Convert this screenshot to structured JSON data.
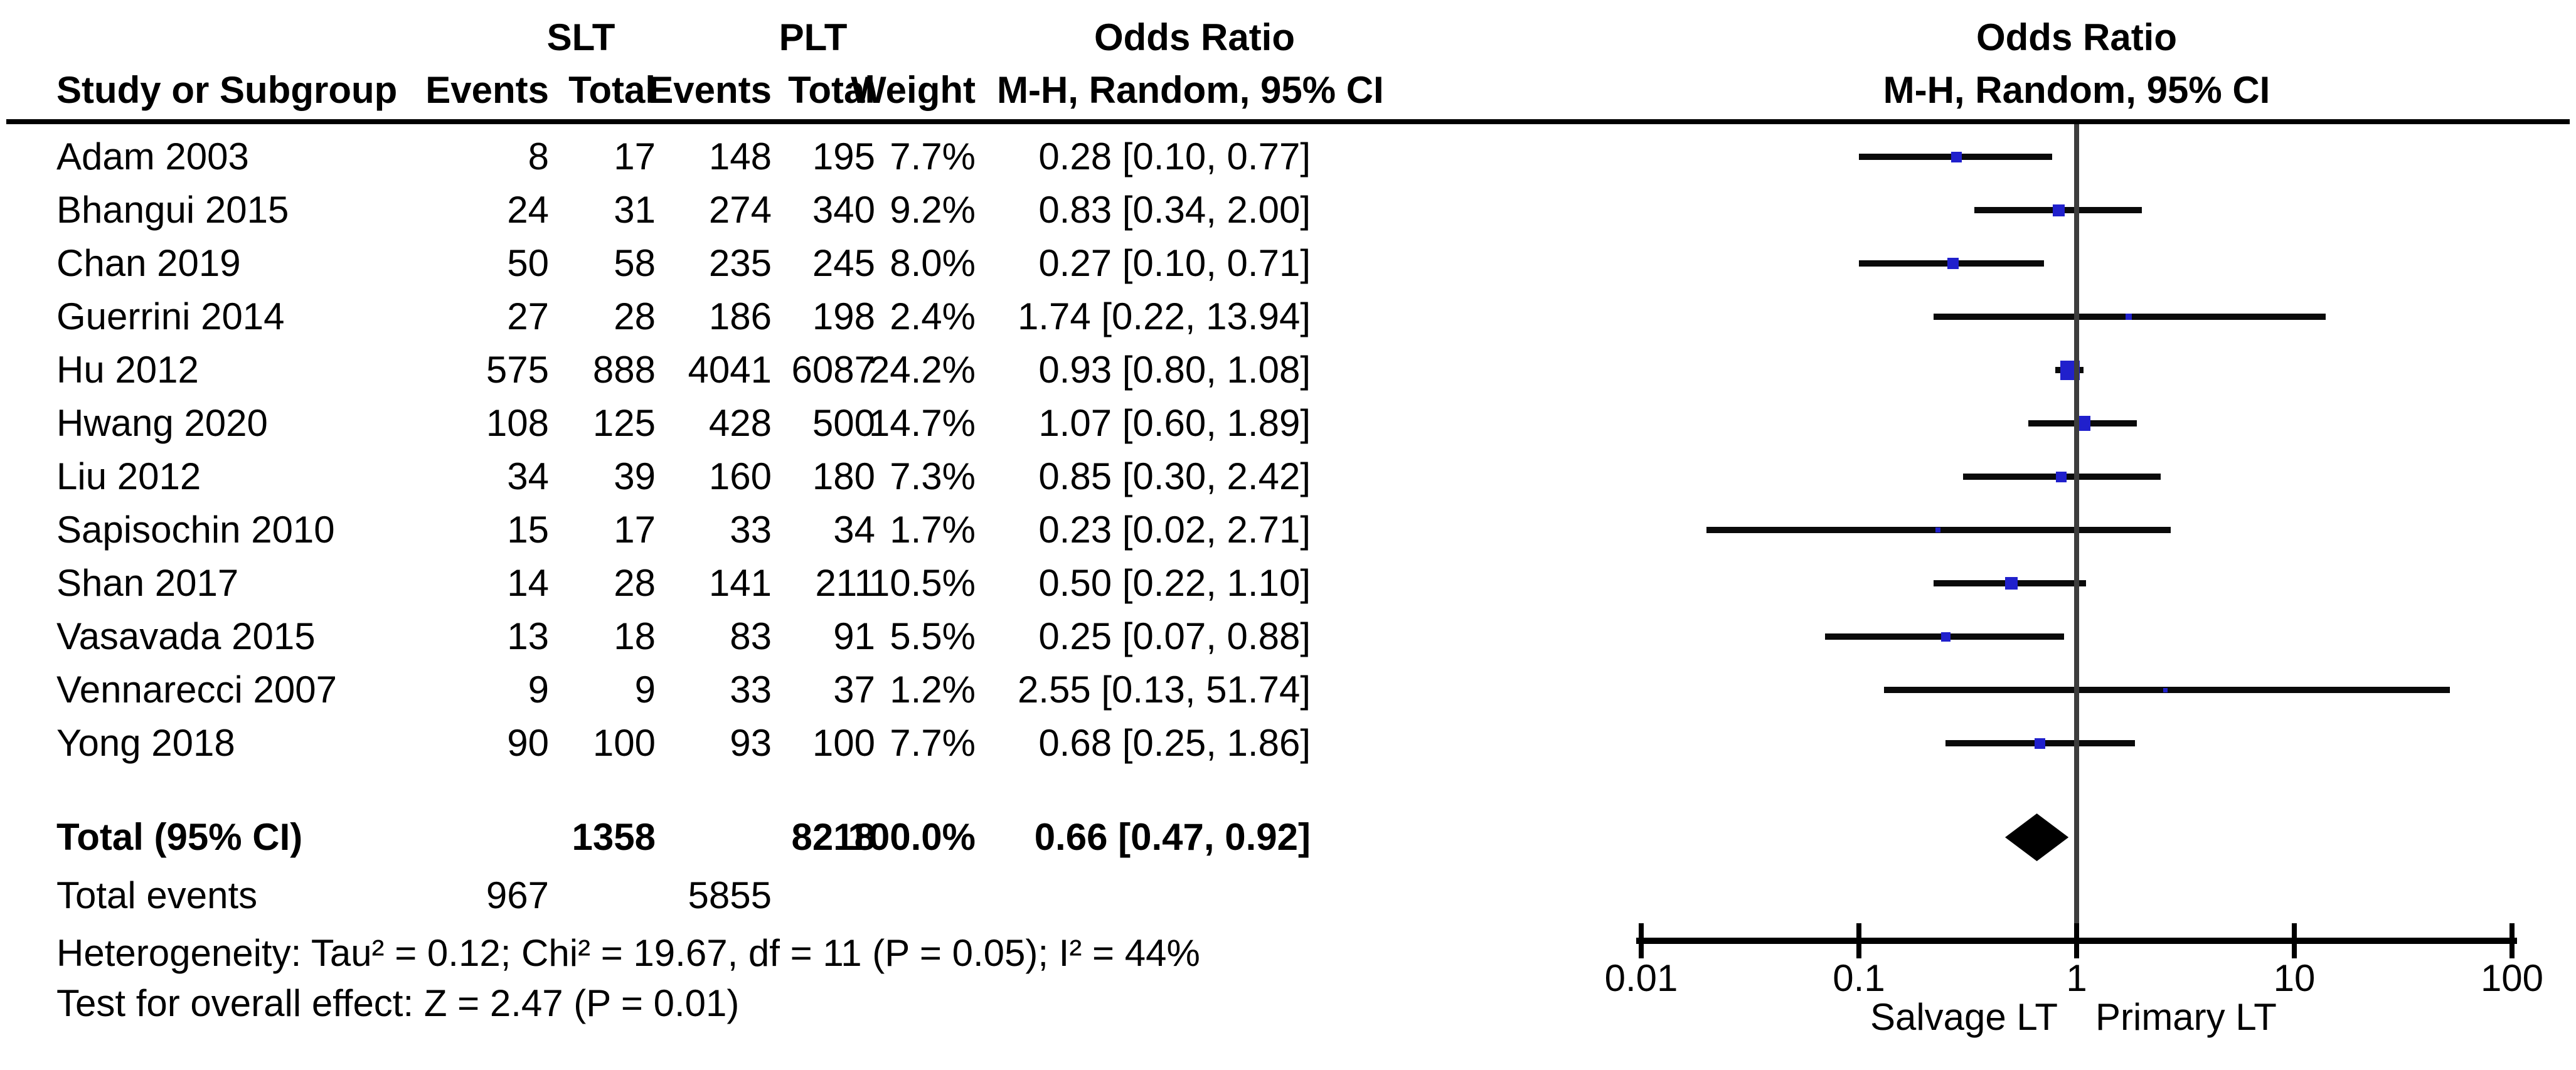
{
  "figure_colors": {
    "background": "#ffffff",
    "text": "#000000",
    "marker_blue": "#2020cc",
    "ci_line": "#0a0a0a",
    "diamond": "#000000",
    "axis": "#000000",
    "null_line": "#3d3d3d"
  },
  "header": {
    "study_col": "Study or Subgroup",
    "group1": "SLT",
    "group2": "PLT",
    "events_col": "Events",
    "total_col": "Total",
    "weight_col": "Weight",
    "or_title": "Odds Ratio",
    "or_subtitle": "M-H, Random, 95% CI",
    "plot_title": "Odds Ratio",
    "plot_subtitle": "M-H, Random, 95% CI"
  },
  "chart_data": {
    "type": "forest",
    "x_scale": "log10",
    "x_axis_ticks": [
      "0.01",
      "0.1",
      "1",
      "10",
      "100"
    ],
    "x_axis_tick_values": [
      0.01,
      0.1,
      1,
      10,
      100
    ],
    "null_value": 1,
    "x_label_left": "Salvage LT",
    "x_label_right": "Primary LT",
    "studies": [
      {
        "name": "Adam 2003",
        "slt_events": "8",
        "slt_total": "17",
        "plt_events": "148",
        "plt_total": "195",
        "weight": "7.7%",
        "weight_pct": 7.7,
        "or_text": "0.28 [0.10, 0.77]",
        "or": 0.28,
        "ci_low": 0.1,
        "ci_high": 0.77
      },
      {
        "name": "Bhangui 2015",
        "slt_events": "24",
        "slt_total": "31",
        "plt_events": "274",
        "plt_total": "340",
        "weight": "9.2%",
        "weight_pct": 9.2,
        "or_text": "0.83 [0.34, 2.00]",
        "or": 0.83,
        "ci_low": 0.34,
        "ci_high": 2.0
      },
      {
        "name": "Chan 2019",
        "slt_events": "50",
        "slt_total": "58",
        "plt_events": "235",
        "plt_total": "245",
        "weight": "8.0%",
        "weight_pct": 8.0,
        "or_text": "0.27 [0.10, 0.71]",
        "or": 0.27,
        "ci_low": 0.1,
        "ci_high": 0.71
      },
      {
        "name": "Guerrini 2014",
        "slt_events": "27",
        "slt_total": "28",
        "plt_events": "186",
        "plt_total": "198",
        "weight": "2.4%",
        "weight_pct": 2.4,
        "or_text": "1.74 [0.22, 13.94]",
        "or": 1.74,
        "ci_low": 0.22,
        "ci_high": 13.94
      },
      {
        "name": "Hu 2012",
        "slt_events": "575",
        "slt_total": "888",
        "plt_events": "4041",
        "plt_total": "6087",
        "weight": "24.2%",
        "weight_pct": 24.2,
        "or_text": "0.93 [0.80, 1.08]",
        "or": 0.93,
        "ci_low": 0.8,
        "ci_high": 1.08
      },
      {
        "name": "Hwang 2020",
        "slt_events": "108",
        "slt_total": "125",
        "plt_events": "428",
        "plt_total": "500",
        "weight": "14.7%",
        "weight_pct": 14.7,
        "or_text": "1.07 [0.60, 1.89]",
        "or": 1.07,
        "ci_low": 0.6,
        "ci_high": 1.89
      },
      {
        "name": "Liu 2012",
        "slt_events": "34",
        "slt_total": "39",
        "plt_events": "160",
        "plt_total": "180",
        "weight": "7.3%",
        "weight_pct": 7.3,
        "or_text": "0.85 [0.30, 2.42]",
        "or": 0.85,
        "ci_low": 0.3,
        "ci_high": 2.42
      },
      {
        "name": "Sapisochin 2010",
        "slt_events": "15",
        "slt_total": "17",
        "plt_events": "33",
        "plt_total": "34",
        "weight": "1.7%",
        "weight_pct": 1.7,
        "or_text": "0.23 [0.02, 2.71]",
        "or": 0.23,
        "ci_low": 0.02,
        "ci_high": 2.71
      },
      {
        "name": "Shan 2017",
        "slt_events": "14",
        "slt_total": "28",
        "plt_events": "141",
        "plt_total": "211",
        "weight": "10.5%",
        "weight_pct": 10.5,
        "or_text": "0.50 [0.22, 1.10]",
        "or": 0.5,
        "ci_low": 0.22,
        "ci_high": 1.1
      },
      {
        "name": "Vasavada 2015",
        "slt_events": "13",
        "slt_total": "18",
        "plt_events": "83",
        "plt_total": "91",
        "weight": "5.5%",
        "weight_pct": 5.5,
        "or_text": "0.25 [0.07, 0.88]",
        "or": 0.25,
        "ci_low": 0.07,
        "ci_high": 0.88
      },
      {
        "name": "Vennarecci 2007",
        "slt_events": "9",
        "slt_total": "9",
        "plt_events": "33",
        "plt_total": "37",
        "weight": "1.2%",
        "weight_pct": 1.2,
        "or_text": "2.55 [0.13, 51.74]",
        "or": 2.55,
        "ci_low": 0.13,
        "ci_high": 51.74
      },
      {
        "name": "Yong 2018",
        "slt_events": "90",
        "slt_total": "100",
        "plt_events": "93",
        "plt_total": "100",
        "weight": "7.7%",
        "weight_pct": 7.7,
        "or_text": "0.68 [0.25, 1.86]",
        "or": 0.68,
        "ci_low": 0.25,
        "ci_high": 1.86
      }
    ],
    "total": {
      "label": "Total (95% CI)",
      "slt_total": "1358",
      "plt_total": "8218",
      "weight": "100.0%",
      "or_text": "0.66 [0.47, 0.92]",
      "or": 0.66,
      "ci_low": 0.47,
      "ci_high": 0.92
    },
    "total_events": {
      "label": "Total events",
      "slt": "967",
      "plt": "5855"
    },
    "heterogeneity": "Heterogeneity: Tau² = 0.12; Chi² = 19.67, df = 11 (P = 0.05); I² = 44%",
    "overall_effect": "Test for overall effect: Z = 2.47 (P = 0.01)"
  }
}
